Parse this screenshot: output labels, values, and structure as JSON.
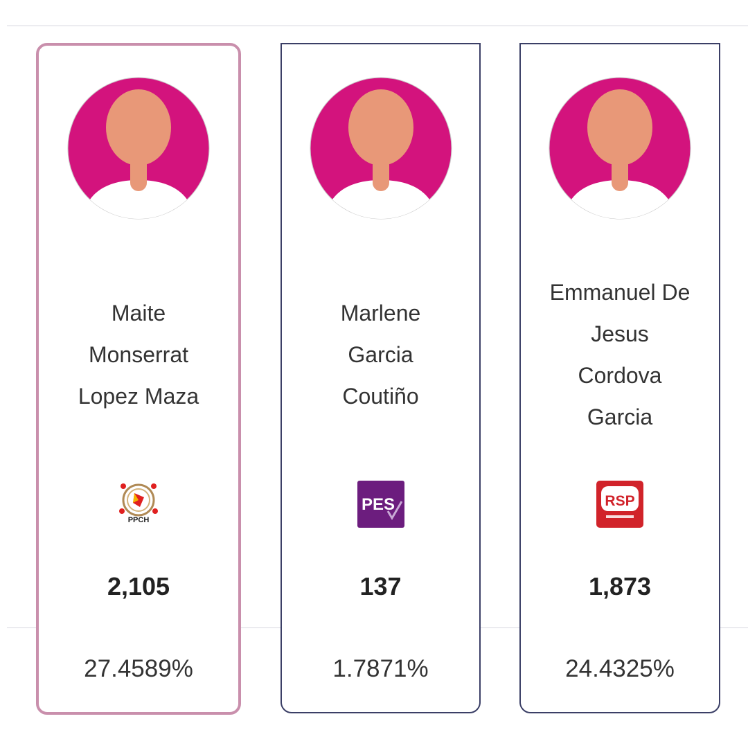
{
  "candidates": [
    {
      "name_lines": [
        "Maite",
        "Monserrat",
        "Lopez Maza"
      ],
      "party_logo_icon": "ppch-logo-icon",
      "party_logo_text": "PPCH",
      "votes": "2,105",
      "percentage": "27.4589%",
      "highlighted": true
    },
    {
      "name_lines": [
        "Marlene",
        "Garcia",
        "Coutiño"
      ],
      "party_logo_icon": "pes-logo-icon",
      "party_logo_text": "PES",
      "votes": "137",
      "percentage": "1.7871%",
      "highlighted": false
    },
    {
      "name_lines": [
        "Emmanuel De",
        "Jesus",
        "Cordova",
        "Garcia"
      ],
      "party_logo_icon": "rsp-logo-icon",
      "party_logo_text": "RSP",
      "votes": "1,873",
      "percentage": "24.4325%",
      "highlighted": false
    }
  ],
  "colors": {
    "highlight_border": "#c98fac",
    "card_border": "#3b3f66",
    "avatar_bg": "#d3137d",
    "avatar_skin": "#e89878",
    "pes_purple": "#6c1d7e",
    "rsp_red": "#d1232a",
    "ppch_red": "#e02020"
  }
}
